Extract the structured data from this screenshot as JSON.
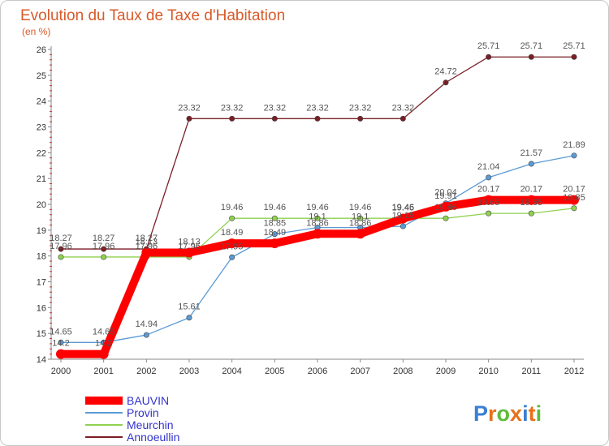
{
  "chart_data": {
    "type": "line",
    "title": "Evolution du Taux de Taxe d'Habitation",
    "subtitle": "(en %)",
    "x": [
      "2000",
      "2001",
      "2002",
      "2003",
      "2004",
      "2005",
      "2006",
      "2007",
      "2008",
      "2009",
      "2010",
      "2011",
      "2012"
    ],
    "ylim": [
      14,
      26
    ],
    "yticks": [
      14,
      15,
      16,
      17,
      18,
      19,
      20,
      21,
      22,
      23,
      24,
      25,
      26
    ],
    "grid": false,
    "legend_position": "bottom-left",
    "series": [
      {
        "name": "Annoeullin",
        "color": "#7a1f25",
        "values": [
          18.27,
          18.27,
          18.27,
          23.32,
          23.32,
          23.32,
          23.32,
          23.32,
          23.32,
          24.72,
          25.71,
          25.71,
          25.71
        ],
        "labels": [
          "18.27",
          "18.27",
          "18.27",
          "23.32",
          "23.32",
          "23.32",
          "23.32",
          "23.32",
          "23.32",
          "24.72",
          "25.71",
          "25.71",
          "25.71"
        ]
      },
      {
        "name": "Provin",
        "color": "#5b9bd5",
        "values": [
          14.65,
          14.65,
          14.94,
          15.61,
          17.95,
          18.85,
          19.1,
          19.1,
          19.15,
          20.04,
          21.04,
          21.57,
          21.89
        ],
        "labels": [
          "14.65",
          "14.65",
          "14.94",
          "15.61",
          "17.95",
          "18.85",
          "19.1",
          "19.1",
          "19.15",
          "20.04",
          "21.04",
          "21.57",
          "21.89"
        ]
      },
      {
        "name": "Meurchin",
        "color": "#8fd14f",
        "values": [
          17.96,
          17.96,
          17.96,
          17.96,
          19.46,
          19.46,
          19.46,
          19.46,
          19.46,
          19.46,
          19.65,
          19.65,
          19.85
        ],
        "labels": [
          "17.96",
          "17.96",
          "17.96",
          "17.96",
          "19.46",
          "19.46",
          "19.46",
          "19.46",
          "19.46",
          "19.46",
          "19.65",
          "19.65",
          "19.85"
        ]
      },
      {
        "name": "BAUVIN",
        "color": "#ff0000",
        "values": [
          14.2,
          14.2,
          18.13,
          18.13,
          18.49,
          18.49,
          18.86,
          18.86,
          19.45,
          19.91,
          20.17,
          20.17,
          20.17
        ],
        "labels": [
          "14.2",
          "14.2",
          "18.13",
          "18.13",
          "18.49",
          "18.49",
          "18.86",
          "18.86",
          "19.45",
          "19.91",
          "20.17",
          "20.17",
          "20.17"
        ]
      }
    ],
    "legend": [
      {
        "name": "BAUVIN",
        "color": "#ff0000",
        "text_color": "#3333cc"
      },
      {
        "name": "Provin",
        "color": "#5b9bd5",
        "text_color": "#3333cc"
      },
      {
        "name": "Meurchin",
        "color": "#8fd14f",
        "text_color": "#3333cc"
      },
      {
        "name": "Annoeullin",
        "color": "#7a1f25",
        "text_color": "#3333cc"
      }
    ]
  },
  "logo": {
    "text": "Proxiti",
    "letters": [
      "P",
      "r",
      "o",
      "x",
      "i",
      "t",
      "i"
    ],
    "colors": [
      "#3a7fd5",
      "#e8701a",
      "#5dbb3a",
      "#e8701a",
      "#3a7fd5",
      "#e8701a",
      "#5dbb3a"
    ]
  }
}
